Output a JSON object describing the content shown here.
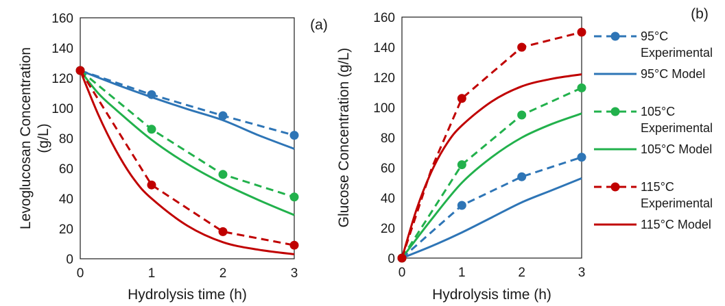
{
  "chart_data": [
    {
      "type": "line",
      "panel_label": "(a)",
      "xlabel": "Hydrolysis time (h)",
      "ylabel_lines": [
        "Levoglucosan Concentration",
        "(g/L)"
      ],
      "xlim": [
        0,
        3
      ],
      "ylim": [
        0,
        160
      ],
      "xticks": [
        0,
        1,
        2,
        3
      ],
      "yticks": [
        0,
        20,
        40,
        60,
        80,
        100,
        120,
        140,
        160
      ],
      "grid": false,
      "series": [
        {
          "key": "95_exp",
          "style": "dashed-marker",
          "color": "#2e75b6",
          "x": [
            0,
            1,
            2,
            3
          ],
          "y": [
            125,
            109,
            95,
            82
          ]
        },
        {
          "key": "95_model",
          "style": "solid",
          "color": "#2e75b6",
          "x": [
            0,
            0.5,
            1,
            1.5,
            2,
            2.5,
            3
          ],
          "y": [
            125,
            115.8,
            107.3,
            99.4,
            92.0,
            82.0,
            73.0
          ]
        },
        {
          "key": "105_exp",
          "style": "dashed-marker",
          "color": "#22b14c",
          "x": [
            0,
            1,
            2,
            3
          ],
          "y": [
            125,
            86,
            56,
            41
          ]
        },
        {
          "key": "105_model",
          "style": "solid",
          "color": "#22b14c",
          "x": [
            0,
            0.25,
            0.5,
            1,
            1.5,
            2,
            2.5,
            3
          ],
          "y": [
            125,
            110,
            99,
            79,
            63,
            50,
            39,
            29
          ]
        },
        {
          "key": "115_exp",
          "style": "dashed-marker",
          "color": "#c00000",
          "x": [
            0,
            1,
            2,
            3
          ],
          "y": [
            125,
            49,
            18,
            9
          ]
        },
        {
          "key": "115_model",
          "style": "solid",
          "color": "#c00000",
          "x": [
            0,
            0.25,
            0.5,
            0.75,
            1,
            1.5,
            2,
            2.5,
            3
          ],
          "y": [
            125,
            96,
            72,
            53,
            40,
            22,
            11,
            6,
            3
          ]
        }
      ]
    },
    {
      "type": "line",
      "panel_label": "(b)",
      "xlabel": "Hydrolysis time (h)",
      "ylabel_lines": [
        "Glucose Concentration (g/L)"
      ],
      "xlim": [
        0,
        3
      ],
      "ylim": [
        0,
        160
      ],
      "xticks": [
        0,
        1,
        2,
        3
      ],
      "yticks": [
        0,
        20,
        40,
        60,
        80,
        100,
        120,
        140,
        160
      ],
      "grid": false,
      "legend_position": "right",
      "series": [
        {
          "key": "95_exp",
          "legend": [
            "95°C",
            "Experimental"
          ],
          "style": "dashed-marker",
          "color": "#2e75b6",
          "x": [
            0,
            1,
            2,
            3
          ],
          "y": [
            0,
            35,
            54,
            67
          ]
        },
        {
          "key": "95_model",
          "legend": [
            "95°C Model"
          ],
          "style": "solid",
          "color": "#2e75b6",
          "x": [
            0,
            0.5,
            1,
            1.5,
            2,
            2.5,
            3
          ],
          "y": [
            0,
            8,
            17,
            27,
            37,
            45,
            53
          ]
        },
        {
          "key": "105_exp",
          "legend": [
            "105°C",
            "Experimental"
          ],
          "style": "dashed-marker",
          "color": "#22b14c",
          "x": [
            0,
            1,
            2,
            3
          ],
          "y": [
            0,
            62,
            95,
            113
          ]
        },
        {
          "key": "105_model",
          "legend": [
            "105°C Model"
          ],
          "style": "solid",
          "color": "#22b14c",
          "x": [
            0,
            0.5,
            1,
            1.5,
            2,
            2.5,
            3
          ],
          "y": [
            0,
            26,
            50,
            67,
            80,
            89,
            96
          ]
        },
        {
          "key": "115_exp",
          "legend": [
            "115°C",
            "Experimental"
          ],
          "style": "dashed-marker",
          "color": "#c00000",
          "x": [
            0,
            0.5,
            1,
            2,
            3
          ],
          "y": [
            0,
            60,
            106,
            140,
            150
          ]
        },
        {
          "key": "115_model",
          "legend": [
            "115°C Model"
          ],
          "style": "solid",
          "color": "#c00000",
          "x": [
            0,
            0.25,
            0.5,
            0.75,
            1,
            1.5,
            2,
            2.5,
            3
          ],
          "y": [
            0,
            33,
            58,
            76,
            88,
            104,
            114,
            119,
            122
          ]
        }
      ]
    }
  ]
}
